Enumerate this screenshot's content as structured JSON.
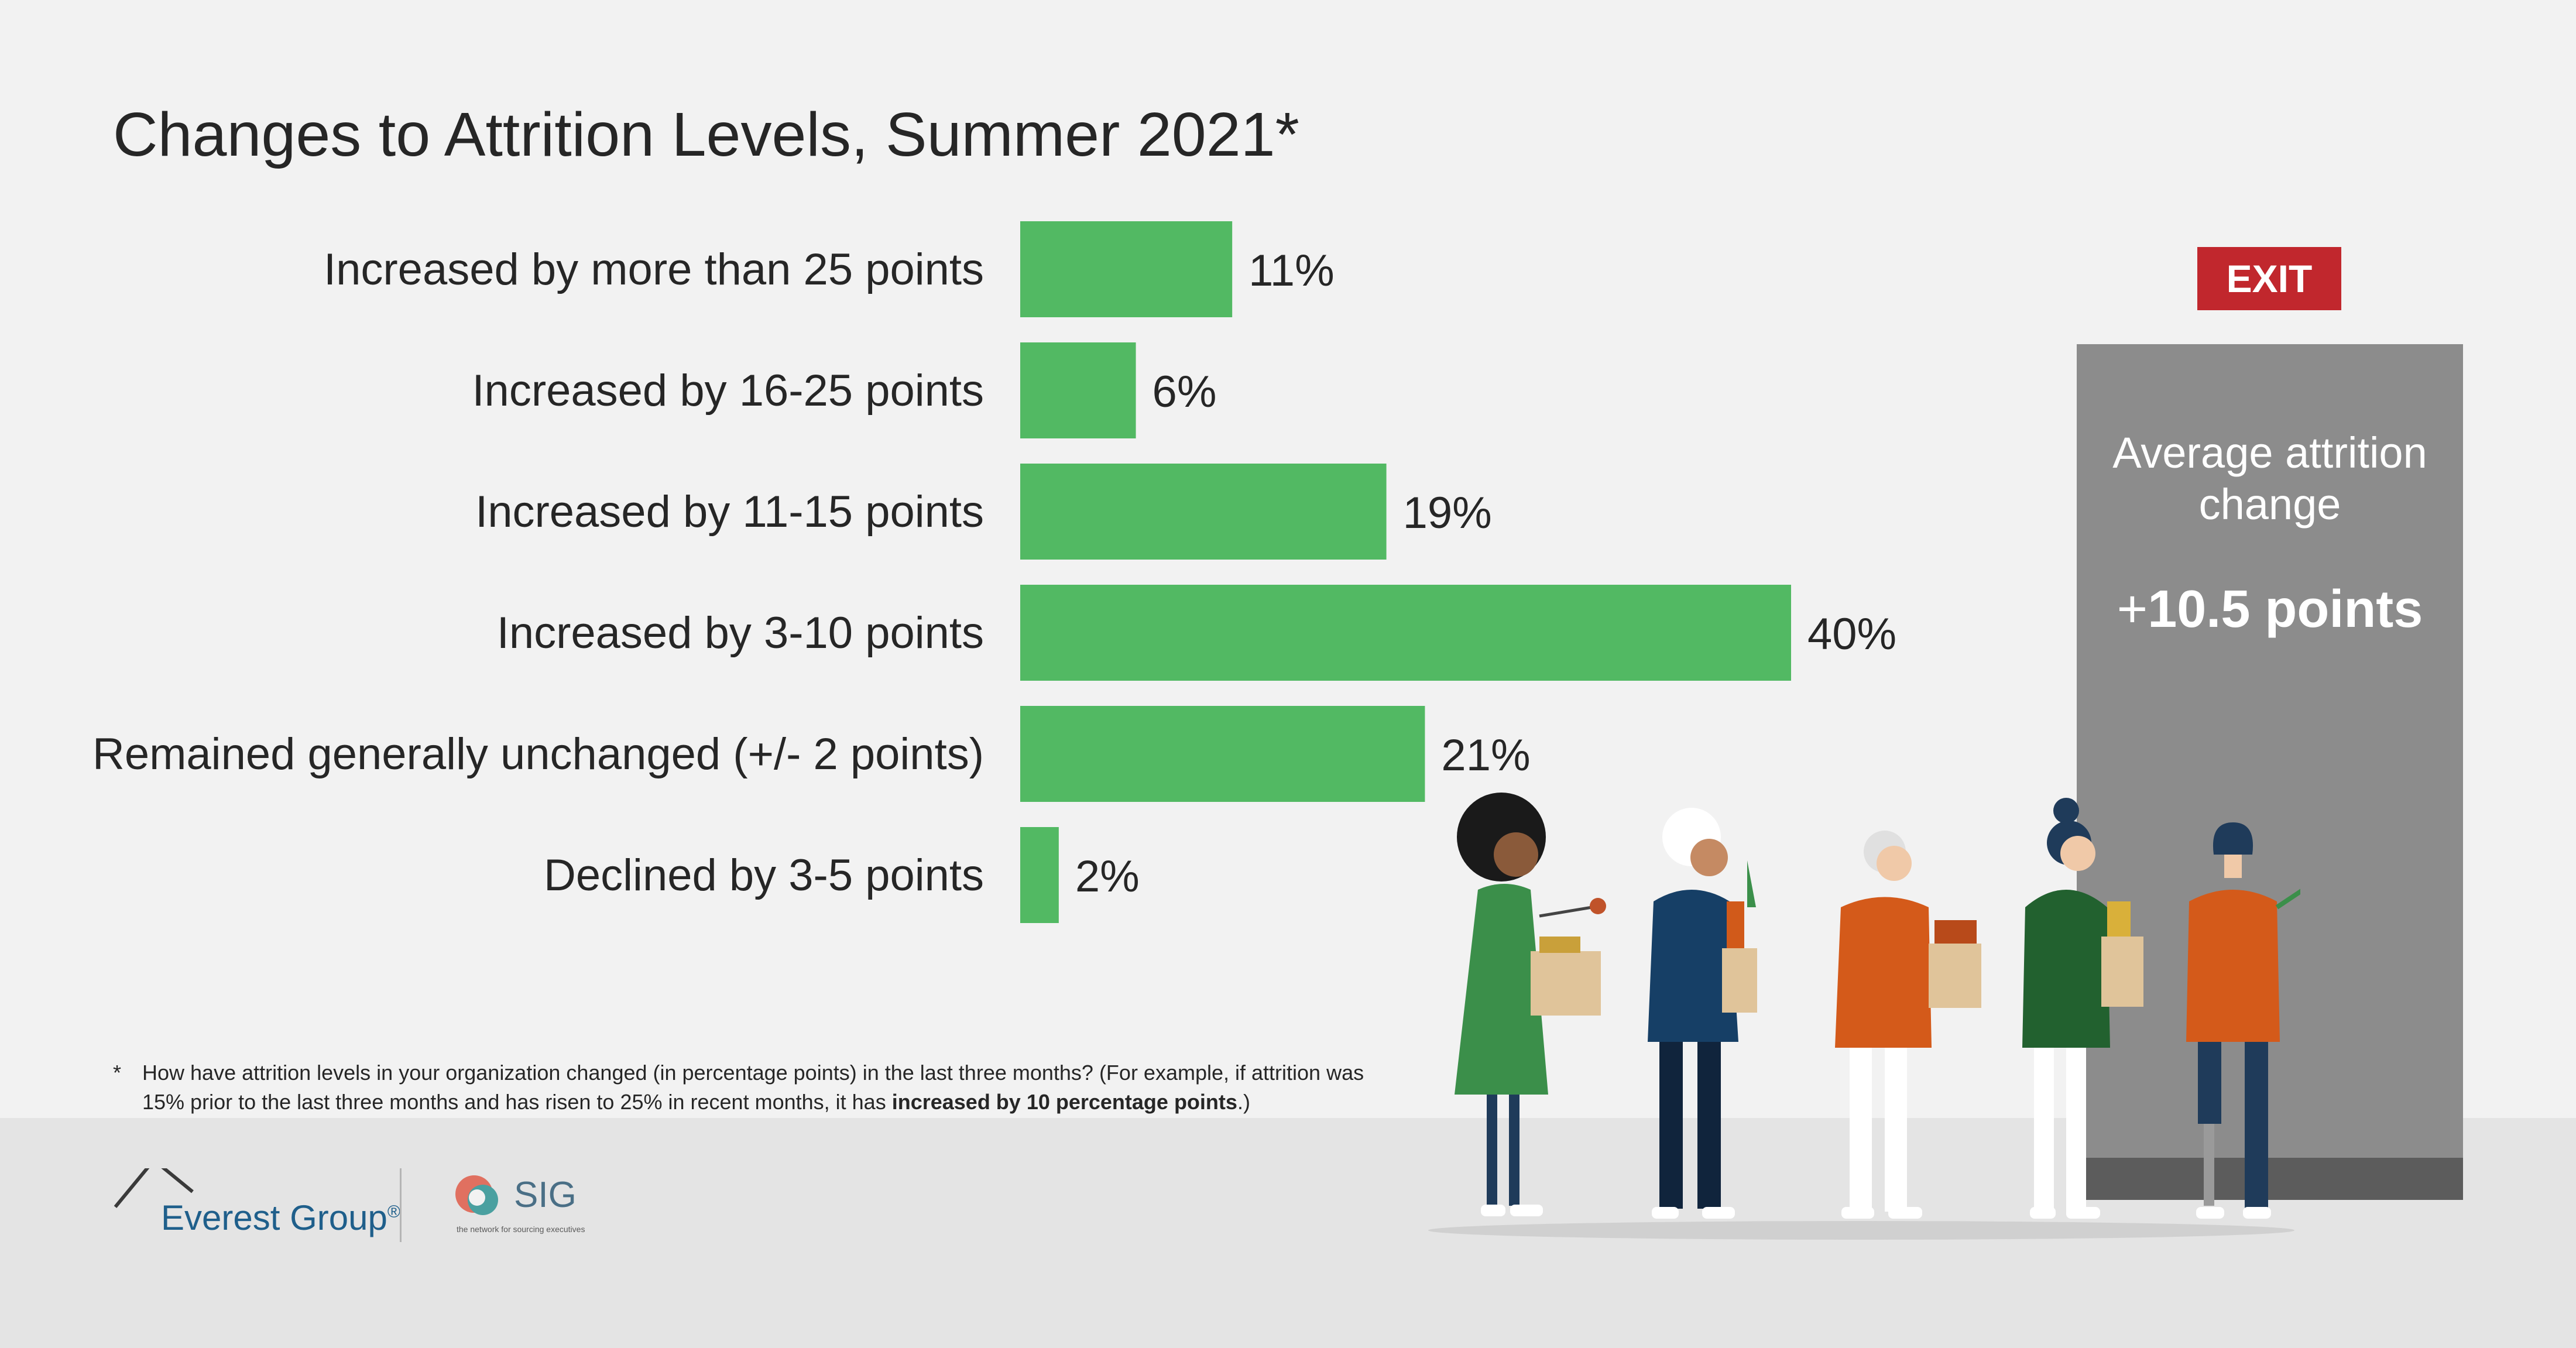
{
  "title": "Changes to Attrition Levels, Summer 2021*",
  "chart_data": {
    "type": "bar",
    "orientation": "horizontal",
    "title": "Changes to Attrition Levels, Summer 2021*",
    "categories": [
      "Increased by more than 25 points",
      "Increased by 16-25 points",
      "Increased by 11-15 points",
      "Increased by 3-10 points",
      "Remained generally unchanged (+/- 2 points)",
      "Declined by 3-5 points"
    ],
    "values": [
      11,
      6,
      19,
      40,
      21,
      2
    ],
    "value_labels": [
      "11%",
      "6%",
      "19%",
      "40%",
      "21%",
      "2%"
    ],
    "unit": "%",
    "xlim": [
      0,
      40
    ],
    "bar_color": "#52b963",
    "grid": false,
    "legend": "none"
  },
  "footnote": {
    "marker": "*",
    "text": "How have attrition levels in your organization changed (in percentage points) in the last three months? (For example, if attrition was 15% prior to the last three months and has risen to 25% in recent months, it has ",
    "emphasis": "increased by 10 percentage points",
    "end": ".)"
  },
  "exit_sign": "EXIT",
  "average": {
    "label": "Average attrition change",
    "value_sign": "+",
    "value": "10.5 points"
  },
  "logos": {
    "everest": "Everest Group",
    "everest_mark": "®",
    "sig": "SIG",
    "sig_tagline": "the network for sourcing executives"
  },
  "colors": {
    "bar": "#52b963",
    "exit": "#c1272d",
    "door": "#8c8c8c",
    "background": "#f2f2f2"
  }
}
